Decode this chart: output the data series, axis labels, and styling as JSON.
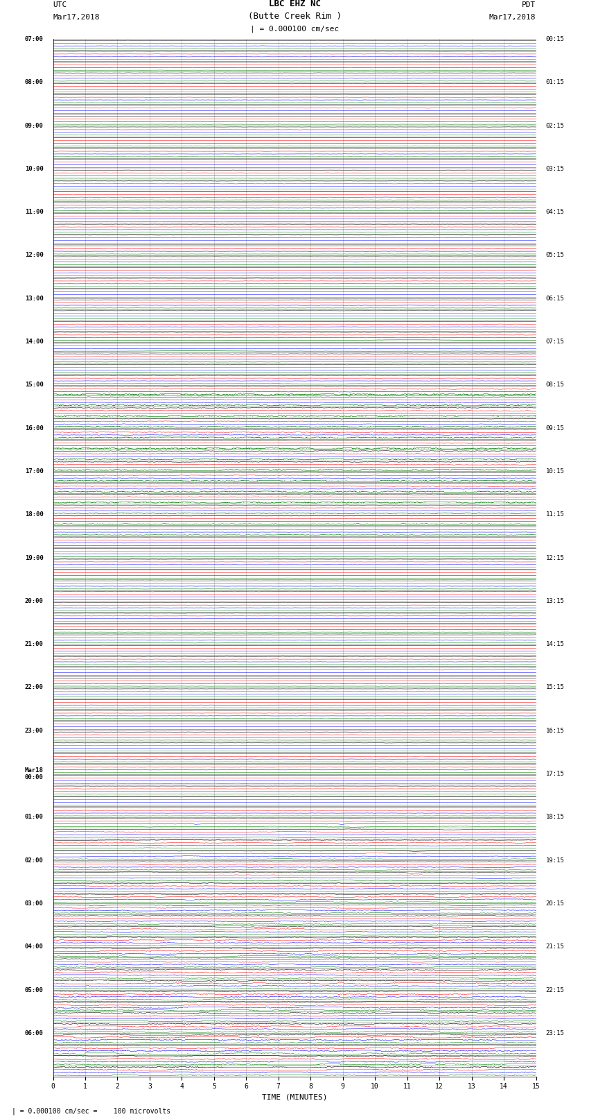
{
  "title_line1": "LBC EHZ NC",
  "title_line2": "(Butte Creek Rim )",
  "scale_label": "| = 0.000100 cm/sec",
  "footer_label": "| = 0.000100 cm/sec =    100 microvolts",
  "left_label_top": "UTC",
  "left_label_date": "Mar17,2018",
  "right_label_top": "PDT",
  "right_label_date": "Mar17,2018",
  "xlabel": "TIME (MINUTES)",
  "bg_color": "#ffffff",
  "trace_colors": [
    "black",
    "red",
    "blue",
    "green"
  ],
  "grid_color": "#808080",
  "left_times_major": {
    "0": "07:00",
    "4": "08:00",
    "8": "09:00",
    "12": "10:00",
    "16": "11:00",
    "20": "12:00",
    "24": "13:00",
    "28": "14:00",
    "32": "15:00",
    "36": "16:00",
    "40": "17:00",
    "44": "18:00",
    "48": "19:00",
    "52": "20:00",
    "56": "21:00",
    "60": "22:00",
    "64": "23:00",
    "68": "Mar18\n00:00",
    "72": "01:00",
    "76": "02:00",
    "80": "03:00",
    "84": "04:00",
    "88": "05:00",
    "92": "06:00"
  },
  "right_times_major": {
    "0": "00:15",
    "4": "01:15",
    "8": "02:15",
    "12": "03:15",
    "16": "04:15",
    "20": "05:15",
    "24": "06:15",
    "28": "07:15",
    "32": "08:15",
    "36": "09:15",
    "40": "10:15",
    "44": "11:15",
    "48": "12:15",
    "52": "13:15",
    "56": "14:15",
    "60": "15:15",
    "64": "16:15",
    "68": "17:15",
    "72": "18:15",
    "76": "19:15",
    "80": "20:15",
    "84": "21:15",
    "88": "22:15",
    "92": "23:15"
  },
  "n_rows": 96,
  "n_traces_per_row": 4,
  "x_min": 0,
  "x_max": 15,
  "x_ticks": [
    0,
    1,
    2,
    3,
    4,
    5,
    6,
    7,
    8,
    9,
    10,
    11,
    12,
    13,
    14,
    15
  ]
}
